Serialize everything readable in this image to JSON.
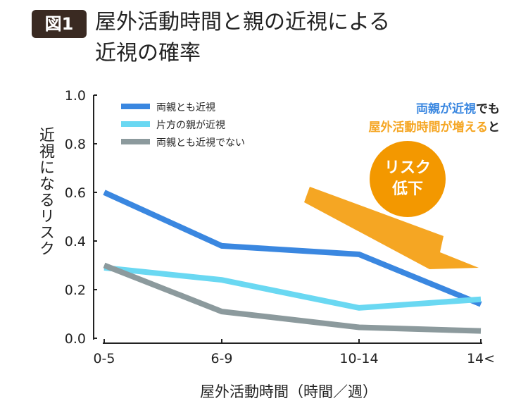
{
  "badge": "図1",
  "title_line1": "屋外活動時間と親の近視による",
  "title_line2": "近視の確率",
  "chart_data": {
    "type": "line",
    "categories": [
      "0-5",
      "6-9",
      "10-14",
      "14<"
    ],
    "series": [
      {
        "name": "両親とも近視",
        "color": "#3a87e0",
        "values": [
          0.6,
          0.38,
          0.345,
          0.14
        ]
      },
      {
        "name": "片方の親が近視",
        "color": "#6ad8f2",
        "values": [
          0.29,
          0.24,
          0.125,
          0.16
        ]
      },
      {
        "name": "両親とも近視でない",
        "color": "#8c9a9d",
        "values": [
          0.3,
          0.11,
          0.045,
          0.03
        ]
      }
    ],
    "yticks": [
      "0.0",
      "0.2",
      "0.4",
      "0.6",
      "0.8",
      "1.0"
    ],
    "ylim": [
      0,
      1.0
    ],
    "xlabel": "屋外活動時間（時間／週）",
    "ylabel": "近視になるリスク",
    "legend": "top-left"
  },
  "annotation": {
    "part1_blue": "両親が近視",
    "part1_rest": "でも",
    "part2_orange": "屋外活動時間が増える",
    "part2_rest": "と",
    "circle_line1": "リスク",
    "circle_line2": "低下"
  }
}
